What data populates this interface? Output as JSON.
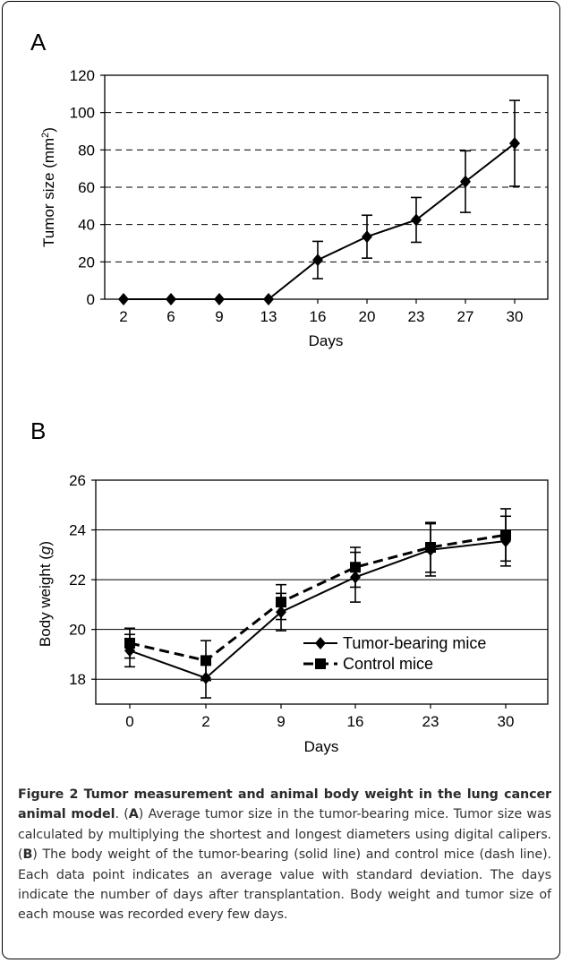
{
  "chart_data": [
    {
      "type": "line",
      "panel_label": "A",
      "categories": [
        "2",
        "6",
        "9",
        "13",
        "16",
        "20",
        "23",
        "27",
        "30"
      ],
      "series": [
        {
          "values": [
            0,
            0,
            0,
            0,
            21,
            33.5,
            42.5,
            63,
            83.5
          ],
          "errors": [
            0,
            0,
            0,
            0,
            10,
            11.5,
            12,
            16.5,
            23
          ],
          "color": "#000000",
          "marker": "diamond"
        }
      ],
      "xlabel": "Days",
      "ylabel": "Tumor size (mm²)",
      "ylabel_main": "Tumor size (mm",
      "ylabel_sup": "2",
      "ylabel_end": ")",
      "ylim": [
        0,
        120
      ],
      "yticks": [
        "0",
        "20",
        "40",
        "60",
        "80",
        "100",
        "120"
      ],
      "grid": "dashed horizontal"
    },
    {
      "type": "line",
      "panel_label": "B",
      "categories": [
        "0",
        "2",
        "9",
        "16",
        "23",
        "30"
      ],
      "series": [
        {
          "name": "Tumor-bearing mice",
          "values": [
            19.15,
            18.05,
            20.7,
            22.1,
            23.2,
            23.55
          ],
          "errors": [
            0.65,
            0.8,
            0.75,
            1.0,
            1.05,
            1.0
          ],
          "color": "#000000",
          "marker": "diamond",
          "line": "solid"
        },
        {
          "name": "Control mice",
          "values": [
            19.45,
            18.75,
            21.1,
            22.5,
            23.3,
            23.8
          ],
          "errors": [
            0.6,
            0.8,
            0.7,
            0.8,
            1.0,
            1.05
          ],
          "color": "#000000",
          "marker": "square",
          "line": "dashed"
        }
      ],
      "xlabel": "Days",
      "ylabel": "Body weight (g)",
      "ylabel_main": "Body weight (",
      "ylabel_ital": "g",
      "ylabel_end": ")",
      "ylim": [
        17,
        26
      ],
      "yticks": [
        "18",
        "20",
        "22",
        "24",
        "26"
      ],
      "grid": "solid horizontal",
      "legend": "center-right"
    }
  ],
  "caption": {
    "title": "Figure 2 Tumor measurement and animal body weight in the lung cancer animal model",
    "seg1": ". (",
    "ref_a": "A",
    "seg2": ") Average tumor size in the tumor-bearing mice. Tumor size was calculated by multiplying the shortest and longest diameters using digital calipers. (",
    "ref_b": "B",
    "seg3": ") The body weight of the tumor-bearing (solid line) and control mice (dash line). Each data point indicates an average value with standard deviation. The days indicate the number of days after transplantation. Body weight and tumor size of each mouse was recorded every few days."
  }
}
